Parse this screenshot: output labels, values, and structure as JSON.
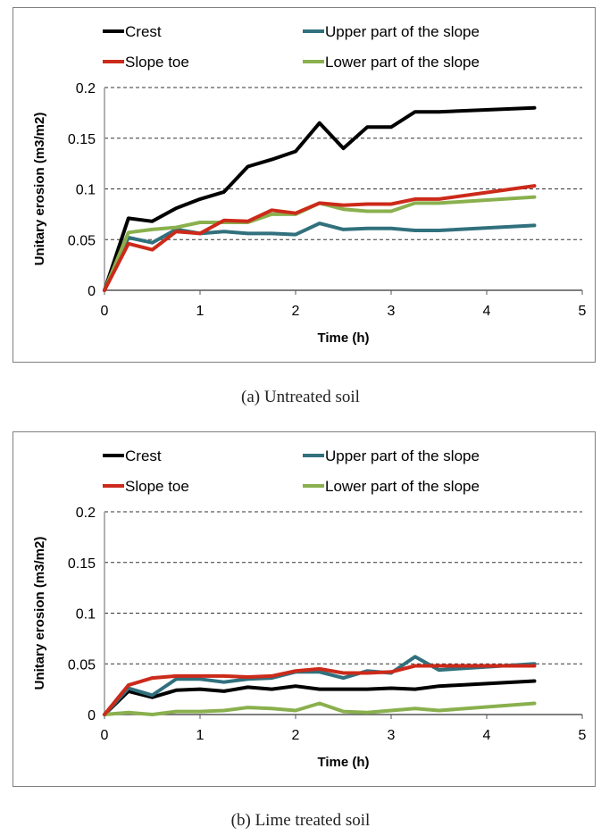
{
  "colors": {
    "crest": "#000000",
    "slope_toe": "#cc2a1a",
    "upper": "#31707d",
    "lower": "#8ab04e"
  },
  "chart_data": [
    {
      "type": "line",
      "caption": "(a) Untreated soil",
      "xlabel": "Time (h)",
      "ylabel": "Unitary erosion (m3/m2)",
      "xlim": [
        0,
        5
      ],
      "ylim": [
        0,
        0.2
      ],
      "xticks": [
        "0",
        "1",
        "2",
        "3",
        "4",
        "5"
      ],
      "yticks": [
        "0",
        "0.05",
        "0.1",
        "0.15",
        "0.2"
      ],
      "grid": "horizontal dashed",
      "legend_position": "top",
      "series": [
        {
          "name": "Crest",
          "color_key": "crest",
          "x": [
            0,
            0.25,
            0.5,
            0.75,
            1,
            1.25,
            1.5,
            1.75,
            2,
            2.25,
            2.5,
            2.75,
            3,
            3.25,
            3.5,
            4.5
          ],
          "y": [
            0,
            0.071,
            0.068,
            0.081,
            0.09,
            0.097,
            0.122,
            0.129,
            0.137,
            0.165,
            0.14,
            0.161,
            0.161,
            0.176,
            0.176,
            0.18
          ]
        },
        {
          "name": "Upper part of the slope",
          "color_key": "upper",
          "x": [
            0,
            0.25,
            0.5,
            0.75,
            1,
            1.25,
            1.5,
            1.75,
            2,
            2.25,
            2.5,
            2.75,
            3,
            3.25,
            3.5,
            4.5
          ],
          "y": [
            0,
            0.052,
            0.047,
            0.06,
            0.056,
            0.058,
            0.056,
            0.056,
            0.055,
            0.066,
            0.06,
            0.061,
            0.061,
            0.059,
            0.059,
            0.064
          ]
        },
        {
          "name": "Slope toe",
          "color_key": "slope_toe",
          "x": [
            0,
            0.25,
            0.5,
            0.75,
            1,
            1.25,
            1.5,
            1.75,
            2,
            2.25,
            2.5,
            2.75,
            3,
            3.25,
            3.5,
            4.5
          ],
          "y": [
            0,
            0.046,
            0.04,
            0.058,
            0.056,
            0.069,
            0.068,
            0.079,
            0.076,
            0.086,
            0.084,
            0.085,
            0.085,
            0.09,
            0.09,
            0.103
          ]
        },
        {
          "name": "Lower part of the slope",
          "color_key": "lower",
          "x": [
            0,
            0.25,
            0.5,
            0.75,
            1,
            1.25,
            1.5,
            1.75,
            2,
            2.25,
            2.5,
            2.75,
            3,
            3.25,
            3.5,
            4.5
          ],
          "y": [
            0,
            0.057,
            0.06,
            0.062,
            0.067,
            0.067,
            0.067,
            0.075,
            0.075,
            0.086,
            0.08,
            0.078,
            0.078,
            0.086,
            0.086,
            0.092
          ]
        }
      ]
    },
    {
      "type": "line",
      "caption": "(b) Lime treated soil",
      "xlabel": "Time (h)",
      "ylabel": "Unitary erosion (m3/m2)",
      "xlim": [
        0,
        5
      ],
      "ylim": [
        0,
        0.2
      ],
      "xticks": [
        "0",
        "1",
        "2",
        "3",
        "4",
        "5"
      ],
      "yticks": [
        "0",
        "0.05",
        "0.1",
        "0.15",
        "0.2"
      ],
      "grid": "horizontal dashed",
      "legend_position": "top",
      "series": [
        {
          "name": "Crest",
          "color_key": "crest",
          "x": [
            0,
            0.25,
            0.5,
            0.75,
            1,
            1.25,
            1.5,
            1.75,
            2,
            2.25,
            2.5,
            2.75,
            3,
            3.25,
            3.5,
            4.5
          ],
          "y": [
            0,
            0.023,
            0.017,
            0.024,
            0.025,
            0.023,
            0.027,
            0.025,
            0.028,
            0.025,
            0.025,
            0.025,
            0.026,
            0.025,
            0.028,
            0.033
          ]
        },
        {
          "name": "Upper part of the slope",
          "color_key": "upper",
          "x": [
            0,
            0.25,
            0.5,
            0.75,
            1,
            1.25,
            1.5,
            1.75,
            2,
            2.25,
            2.5,
            2.75,
            3,
            3.25,
            3.5,
            4.5
          ],
          "y": [
            0,
            0.026,
            0.019,
            0.035,
            0.035,
            0.032,
            0.035,
            0.036,
            0.042,
            0.042,
            0.036,
            0.043,
            0.041,
            0.057,
            0.044,
            0.05
          ]
        },
        {
          "name": "Slope toe",
          "color_key": "slope_toe",
          "x": [
            0,
            0.25,
            0.5,
            0.75,
            1,
            1.25,
            1.5,
            1.75,
            2,
            2.25,
            2.5,
            2.75,
            3,
            3.25,
            3.5,
            4.5
          ],
          "y": [
            0,
            0.029,
            0.036,
            0.038,
            0.038,
            0.038,
            0.037,
            0.038,
            0.043,
            0.045,
            0.041,
            0.041,
            0.042,
            0.048,
            0.048,
            0.048
          ]
        },
        {
          "name": "Lower part of the slope",
          "color_key": "lower",
          "x": [
            0,
            0.25,
            0.5,
            0.75,
            1,
            1.25,
            1.5,
            1.75,
            2,
            2.25,
            2.5,
            2.75,
            3,
            3.25,
            3.5,
            4.5
          ],
          "y": [
            0,
            0.002,
            0,
            0.003,
            0.003,
            0.004,
            0.007,
            0.006,
            0.004,
            0.011,
            0.003,
            0.002,
            0.004,
            0.006,
            0.004,
            0.011
          ]
        }
      ]
    }
  ]
}
